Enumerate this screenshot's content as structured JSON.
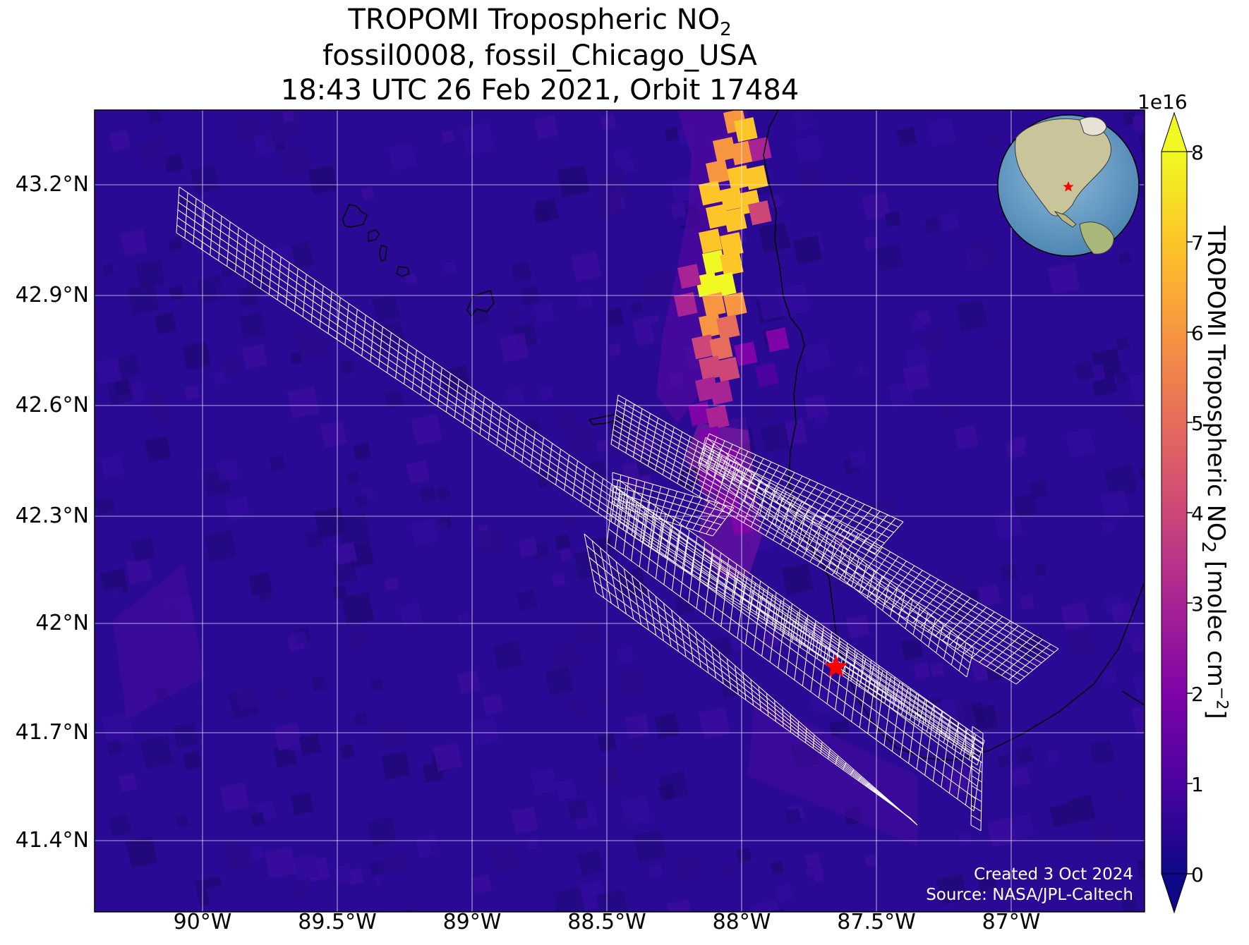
{
  "title": {
    "line1_main": "TROPOMI Tropospheric NO",
    "line1_sub": "2",
    "line2": "fossil0008, fossil_Chicago_USA",
    "line3": "18:43 UTC 26 Feb 2021, Orbit 17484"
  },
  "axes": {
    "lat_labels": [
      "43.2°N",
      "42.9°N",
      "42.6°N",
      "42.3°N",
      "42°N",
      "41.7°N",
      "41.4°N"
    ],
    "lon_labels": [
      "90°W",
      "89.5°W",
      "89°W",
      "88.5°W",
      "88°W",
      "87.5°W",
      "87°W"
    ]
  },
  "colorbar": {
    "title_main": "TROPOMI Tropospheric NO",
    "title_sub": "2",
    "title_units": " [molec cm",
    "title_exp": "−2",
    "title_close": "]",
    "scale_exponent": "1e16",
    "tick_labels": [
      "0",
      "1",
      "2",
      "3",
      "4",
      "5",
      "6",
      "7",
      "8"
    ],
    "colormap": "plasma",
    "range": [
      0,
      8
    ],
    "extend": "both"
  },
  "credits": {
    "created": "Created 3 Oct 2024",
    "source": "Source: NASA/JPL-Caltech"
  },
  "target": {
    "name": "Chicago",
    "marker": "red-star",
    "lon": -87.65,
    "lat": 41.88
  },
  "plume": {
    "peak_value_1e16": 8,
    "background_value_1e16": 0.6
  },
  "inset_globe": {
    "marker": "red-star",
    "colors": {
      "ocean": "#6fa3c8",
      "land": "#c9c49a"
    }
  },
  "colors": {
    "background_field": "#2a0a94",
    "grid_lines": "#ffffff",
    "target_star": "#ff0000",
    "coastline": "#000000"
  }
}
